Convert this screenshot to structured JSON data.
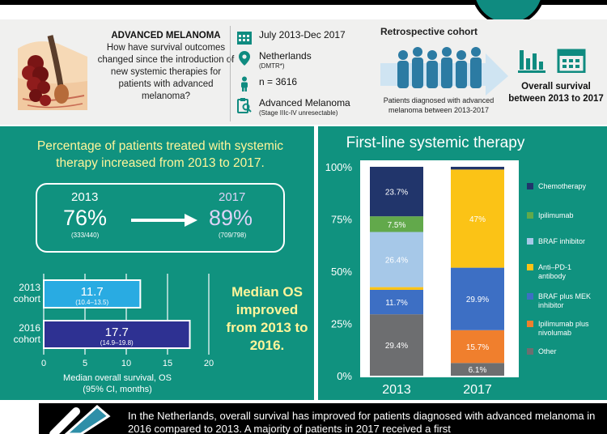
{
  "header": {
    "title": "ADVANCED MELANOMA",
    "question": "How have survival outcomes changed since the introduction of new systemic therapies for patients with advanced melanoma?",
    "period": "July 2013-Dec 2017",
    "country": "Netherlands",
    "registry": "(DMTR*)",
    "n": "n = 3616",
    "disease": "Advanced Melanoma",
    "disease_stage": "(Stage IIIc-IV unresectable)",
    "cohort_type": "Retrospective cohort",
    "cohort_caption": "Patients diagnosed with advanced melanoma between 2013-2017",
    "outcome_caption": "Overall survival between 2013 to 2017"
  },
  "treated": {
    "title": "Percentage of patients treated with systemic therapy increased from 2013 to 2017.",
    "year_a": "2013",
    "pct_a": "76%",
    "frac_a": "(333/440)",
    "year_b": "2017",
    "pct_b": "89%",
    "frac_b": "(709/798)"
  },
  "median_os": {
    "text": "Median OS improved from 2013 to 2016.",
    "axis_label": "Median overall survival, OS",
    "axis_sublabel": "(95% CI, months)"
  },
  "chart_data": [
    {
      "type": "bar",
      "orientation": "horizontal",
      "categories": [
        "2013 cohort",
        "2016 cohort"
      ],
      "values": [
        11.7,
        17.7
      ],
      "ci": [
        "(10.4–13.5)",
        "(14.9–19.8)"
      ],
      "xticks": [
        "0",
        "5",
        "10",
        "15",
        "20"
      ],
      "xlim": [
        0,
        20
      ],
      "colors": [
        "#29abe2",
        "#2e3192"
      ]
    },
    {
      "type": "bar",
      "stacked": true,
      "title": "First-line systemic therapy",
      "categories": [
        "2013",
        "2017"
      ],
      "yticks": [
        "0%",
        "25%",
        "50%",
        "75%",
        "100%"
      ],
      "ylim": [
        0,
        100
      ],
      "series": [
        {
          "name": "Other",
          "color": "#6d6e70",
          "values": [
            29.4,
            6.1
          ],
          "labels": [
            "29.4%",
            "6.1%"
          ]
        },
        {
          "name": "Ipilimumab plus nivolumab",
          "color": "#f07f2d",
          "values": [
            0,
            15.7
          ],
          "labels": [
            "",
            "15.7%"
          ]
        },
        {
          "name": "BRAF plus MEK inhibitor",
          "color": "#3d6fc4",
          "values": [
            11.7,
            29.9
          ],
          "labels": [
            "11.7%",
            "29.9%"
          ]
        },
        {
          "name": "Anti–PD-1 antibody",
          "color": "#fbc316",
          "values": [
            1.3,
            47
          ],
          "labels": [
            "",
            "47%"
          ]
        },
        {
          "name": "BRAF inhibitor",
          "color": "#a6c8e8",
          "values": [
            26.4,
            0
          ],
          "labels": [
            "26.4%",
            ""
          ]
        },
        {
          "name": "Ipilimumab",
          "color": "#62a94b",
          "values": [
            7.5,
            0
          ],
          "labels": [
            "7.5%",
            ""
          ]
        },
        {
          "name": "Chemotherapy",
          "color": "#21356b",
          "values": [
            23.7,
            1.3
          ],
          "labels": [
            "23.7%",
            ""
          ]
        }
      ]
    }
  ],
  "bottom": {
    "text": "In the Netherlands, overall survival has improved for patients diagnosed with advanced melanoma in 2016 compared to 2013. A majority of patients in 2017 received a first"
  }
}
